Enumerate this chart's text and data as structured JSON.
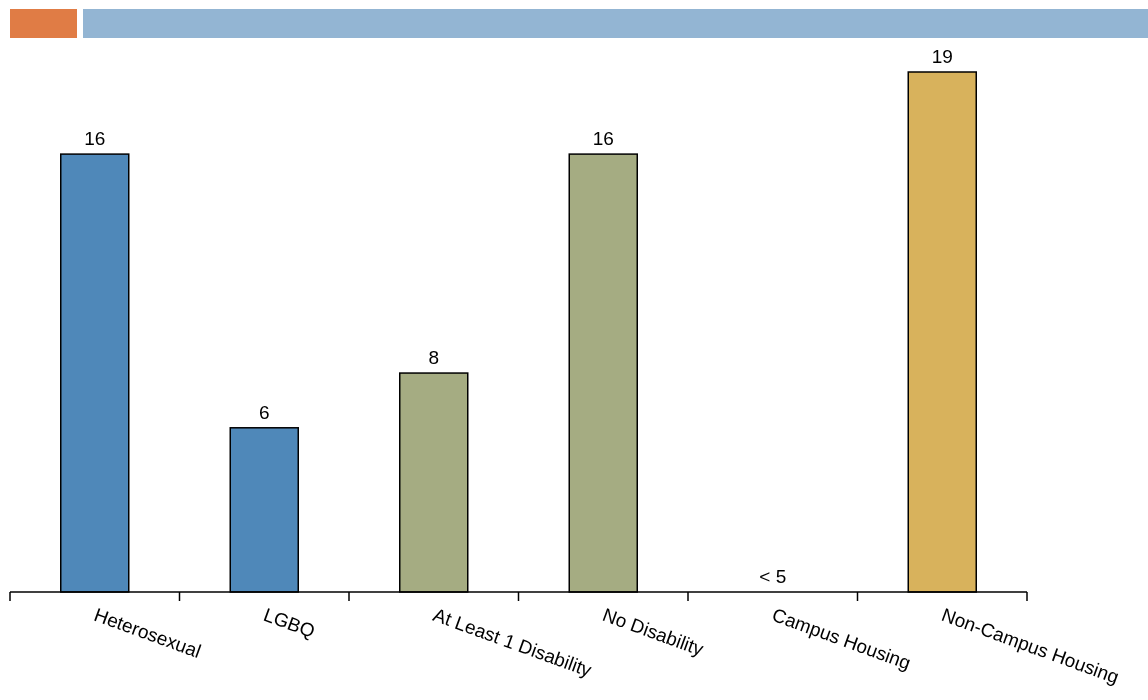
{
  "chart_data": {
    "type": "bar",
    "categories": [
      "Heterosexual",
      "LGBQ",
      "At Least 1 Disability",
      "No Disability",
      "Campus Housing",
      "Non-Campus Housing"
    ],
    "values": [
      16,
      6,
      8,
      16,
      null,
      19
    ],
    "colors": [
      "#4f88b9",
      "#4f88b9",
      "#a5ac82",
      "#a5ac82",
      null,
      "#d8b25c"
    ],
    "value_labels": [
      "16",
      "6",
      "8",
      "16",
      "< 5",
      "19"
    ],
    "tick_labels": "x"
  }
}
